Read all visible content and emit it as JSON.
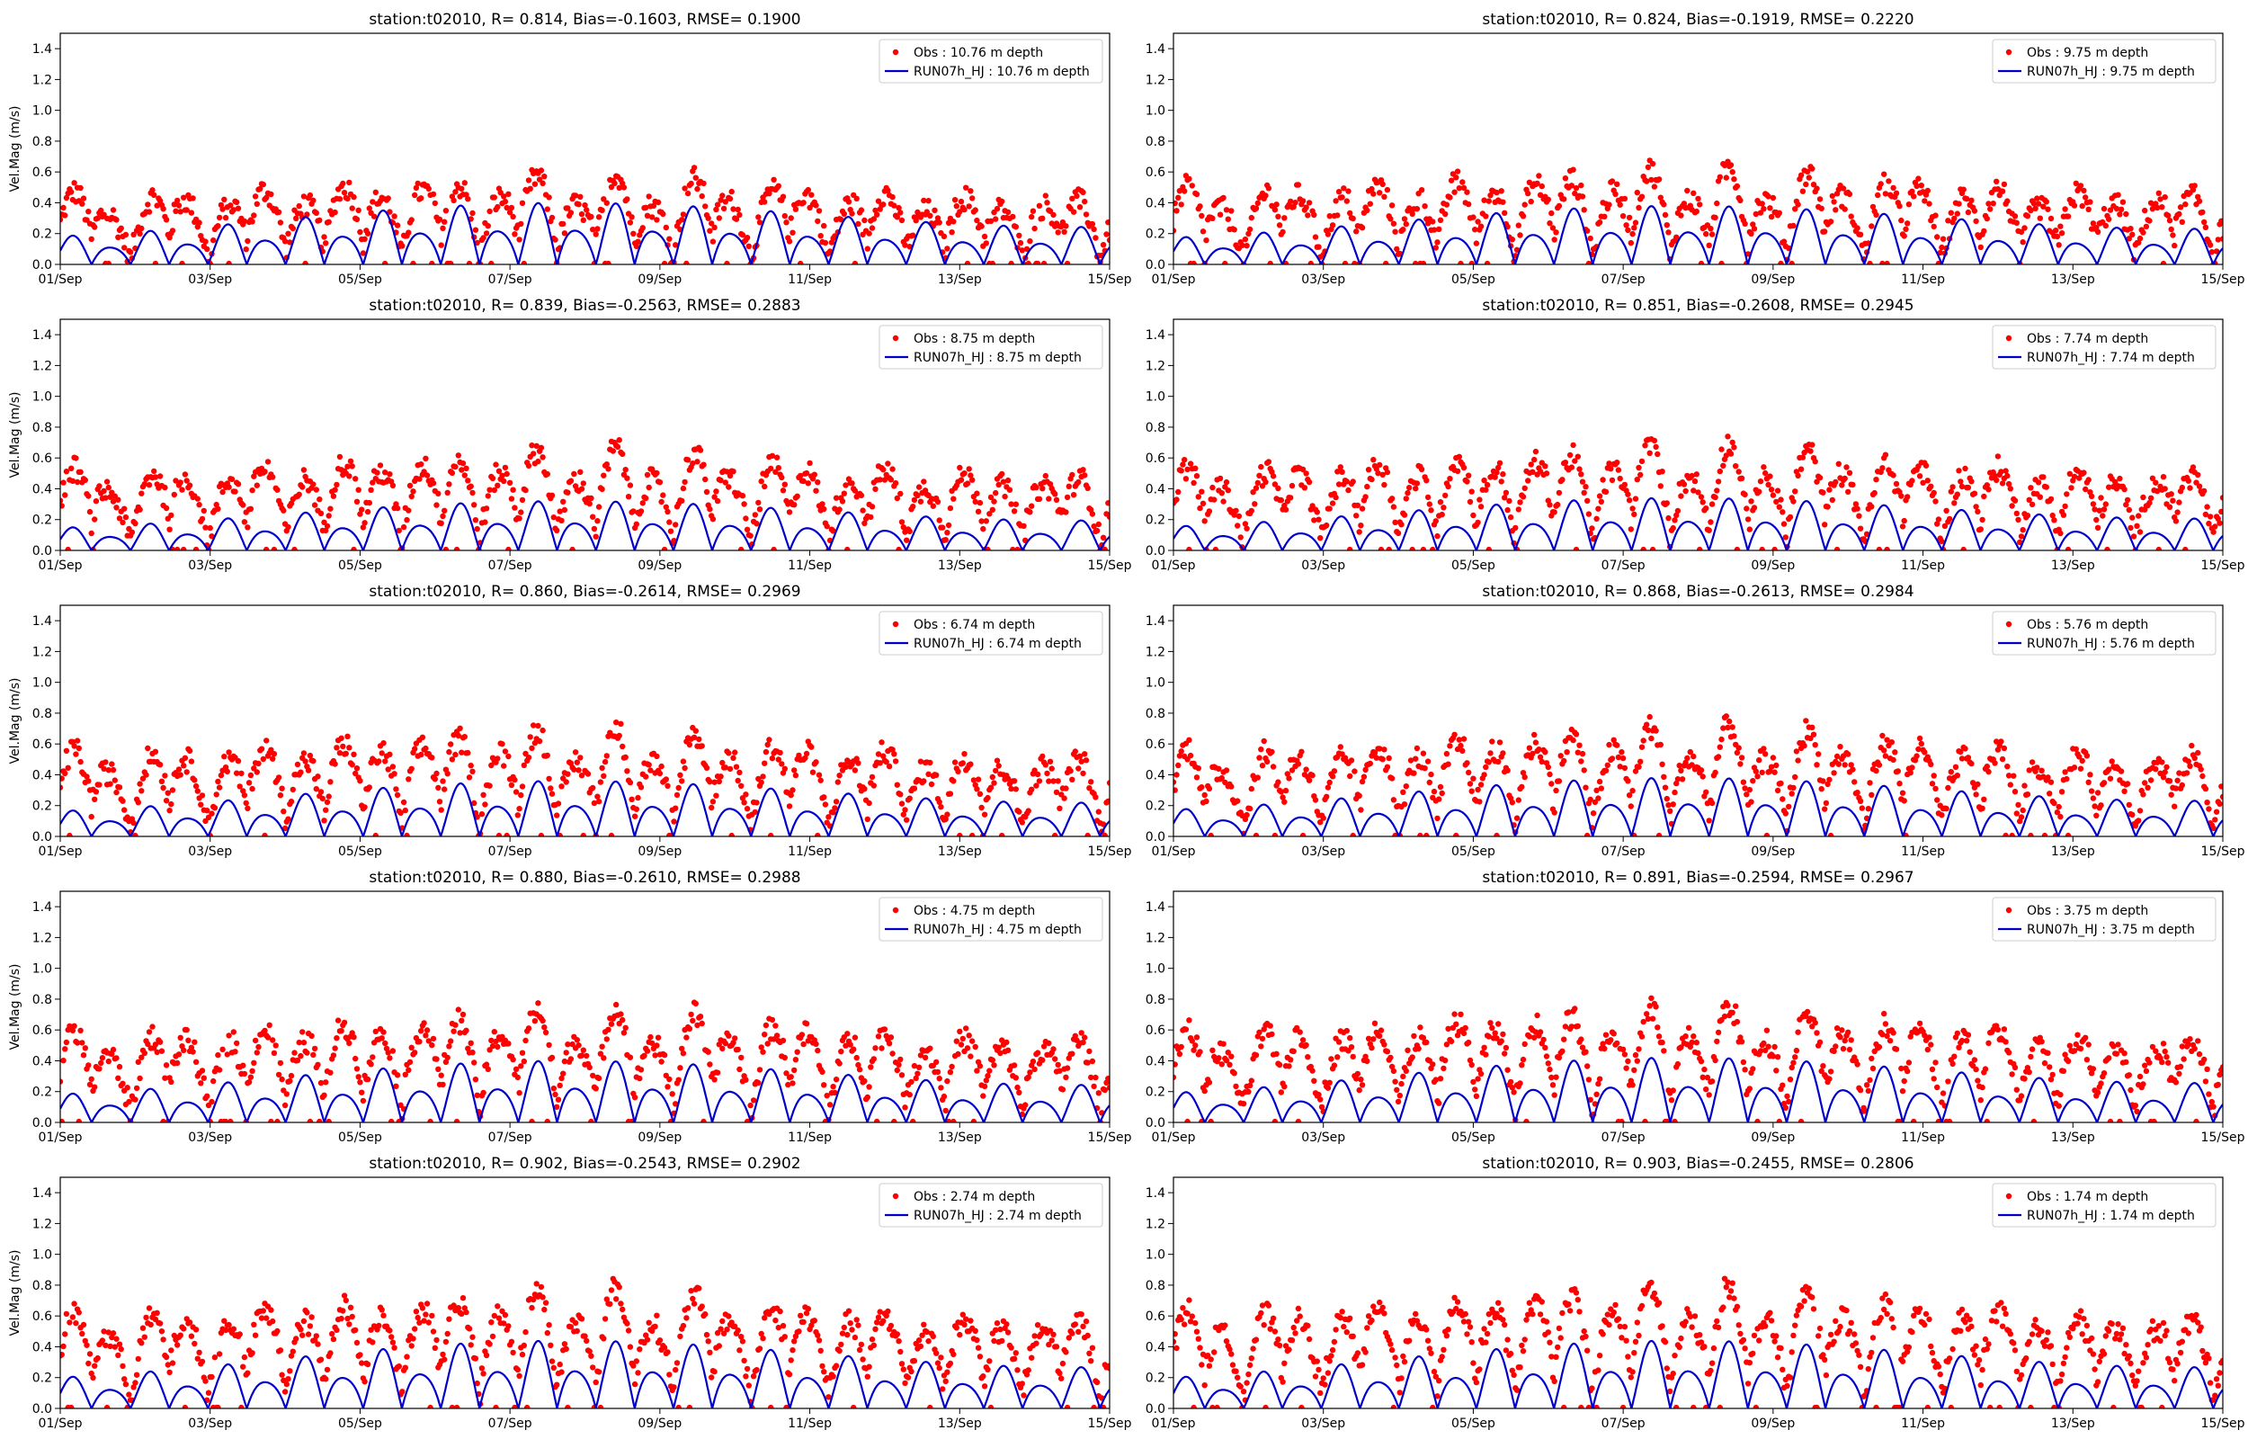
{
  "chart_data": [
    {
      "type": "line",
      "title": "station:t02010, R= 0.814, Bias=-0.1603, RMSE= 0.1900",
      "ylabel": "Vel.Mag (m/s)",
      "ylim": [
        0,
        1.5
      ],
      "yticks": [
        "0.0",
        "0.2",
        "0.4",
        "0.6",
        "0.8",
        "1.0",
        "1.2",
        "1.4"
      ],
      "xticks": [
        "01/Sep",
        "03/Sep",
        "05/Sep",
        "07/Sep",
        "09/Sep",
        "11/Sep",
        "13/Sep",
        "15/Sep"
      ],
      "xlim_days": [
        0,
        14
      ],
      "legend": "top-right",
      "series": [
        {
          "name": "Obs : 10.76 m depth",
          "kind": "scatter",
          "color": "#ff0000",
          "base": 0.3,
          "amp": 0.26
        },
        {
          "name": "RUN07h_HJ : 10.76 m depth",
          "kind": "line",
          "color": "#0000cc",
          "base": 0.2,
          "amp": 0.14
        }
      ]
    },
    {
      "type": "line",
      "title": "station:t02010, R= 0.824, Bias=-0.1919, RMSE= 0.2220",
      "ylabel": "",
      "ylim": [
        0,
        1.5
      ],
      "yticks": [
        "0.0",
        "0.2",
        "0.4",
        "0.6",
        "0.8",
        "1.0",
        "1.2",
        "1.4"
      ],
      "xticks": [
        "01/Sep",
        "03/Sep",
        "05/Sep",
        "07/Sep",
        "09/Sep",
        "11/Sep",
        "13/Sep",
        "15/Sep"
      ],
      "xlim_days": [
        0,
        14
      ],
      "legend": "top-right",
      "series": [
        {
          "name": "Obs : 9.75 m depth",
          "kind": "scatter",
          "color": "#ff0000",
          "base": 0.32,
          "amp": 0.28
        },
        {
          "name": "RUN07h_HJ : 9.75 m depth",
          "kind": "line",
          "color": "#0000cc",
          "base": 0.19,
          "amp": 0.13
        }
      ]
    },
    {
      "type": "line",
      "title": "station:t02010, R= 0.839, Bias=-0.2563, RMSE= 0.2883",
      "ylabel": "Vel.Mag (m/s)",
      "ylim": [
        0,
        1.5
      ],
      "yticks": [
        "0.0",
        "0.2",
        "0.4",
        "0.6",
        "0.8",
        "1.0",
        "1.2",
        "1.4"
      ],
      "xticks": [
        "01/Sep",
        "03/Sep",
        "05/Sep",
        "07/Sep",
        "09/Sep",
        "11/Sep",
        "13/Sep",
        "15/Sep"
      ],
      "xlim_days": [
        0,
        14
      ],
      "legend": "top-right",
      "series": [
        {
          "name": "Obs : 8.75 m depth",
          "kind": "scatter",
          "color": "#ff0000",
          "base": 0.34,
          "amp": 0.3
        },
        {
          "name": "RUN07h_HJ : 8.75 m depth",
          "kind": "line",
          "color": "#0000cc",
          "base": 0.16,
          "amp": 0.1
        }
      ]
    },
    {
      "type": "line",
      "title": "station:t02010, R= 0.851, Bias=-0.2608, RMSE= 0.2945",
      "ylabel": "",
      "ylim": [
        0,
        1.5
      ],
      "yticks": [
        "0.0",
        "0.2",
        "0.4",
        "0.6",
        "0.8",
        "1.0",
        "1.2",
        "1.4"
      ],
      "xticks": [
        "01/Sep",
        "03/Sep",
        "05/Sep",
        "07/Sep",
        "09/Sep",
        "11/Sep",
        "13/Sep",
        "15/Sep"
      ],
      "xlim_days": [
        0,
        14
      ],
      "legend": "top-right",
      "series": [
        {
          "name": "Obs : 7.74 m depth",
          "kind": "scatter",
          "color": "#ff0000",
          "base": 0.35,
          "amp": 0.31
        },
        {
          "name": "RUN07h_HJ : 7.74 m depth",
          "kind": "line",
          "color": "#0000cc",
          "base": 0.17,
          "amp": 0.1
        }
      ]
    },
    {
      "type": "line",
      "title": "station:t02010, R= 0.860, Bias=-0.2614, RMSE= 0.2969",
      "ylabel": "Vel.Mag (m/s)",
      "ylim": [
        0,
        1.5
      ],
      "yticks": [
        "0.0",
        "0.2",
        "0.4",
        "0.6",
        "0.8",
        "1.0",
        "1.2",
        "1.4"
      ],
      "xticks": [
        "01/Sep",
        "03/Sep",
        "05/Sep",
        "07/Sep",
        "09/Sep",
        "11/Sep",
        "13/Sep",
        "15/Sep"
      ],
      "xlim_days": [
        0,
        14
      ],
      "legend": "top-right",
      "series": [
        {
          "name": "Obs : 6.74 m depth",
          "kind": "scatter",
          "color": "#ff0000",
          "base": 0.36,
          "amp": 0.32
        },
        {
          "name": "RUN07h_HJ : 6.74 m depth",
          "kind": "line",
          "color": "#0000cc",
          "base": 0.18,
          "amp": 0.11
        }
      ]
    },
    {
      "type": "line",
      "title": "station:t02010, R= 0.868, Bias=-0.2613, RMSE= 0.2984",
      "ylabel": "",
      "ylim": [
        0,
        1.5
      ],
      "yticks": [
        "0.0",
        "0.2",
        "0.4",
        "0.6",
        "0.8",
        "1.0",
        "1.2",
        "1.4"
      ],
      "xticks": [
        "01/Sep",
        "03/Sep",
        "05/Sep",
        "07/Sep",
        "09/Sep",
        "11/Sep",
        "13/Sep",
        "15/Sep"
      ],
      "xlim_days": [
        0,
        14
      ],
      "legend": "top-right",
      "series": [
        {
          "name": "Obs : 5.76 m depth",
          "kind": "scatter",
          "color": "#ff0000",
          "base": 0.37,
          "amp": 0.33
        },
        {
          "name": "RUN07h_HJ : 5.76 m depth",
          "kind": "line",
          "color": "#0000cc",
          "base": 0.19,
          "amp": 0.11
        }
      ]
    },
    {
      "type": "line",
      "title": "station:t02010, R= 0.880, Bias=-0.2610, RMSE= 0.2988",
      "ylabel": "Vel.Mag (m/s)",
      "ylim": [
        0,
        1.5
      ],
      "yticks": [
        "0.0",
        "0.2",
        "0.4",
        "0.6",
        "0.8",
        "1.0",
        "1.2",
        "1.4"
      ],
      "xticks": [
        "01/Sep",
        "03/Sep",
        "05/Sep",
        "07/Sep",
        "09/Sep",
        "11/Sep",
        "13/Sep",
        "15/Sep"
      ],
      "xlim_days": [
        0,
        14
      ],
      "legend": "top-right",
      "series": [
        {
          "name": "Obs : 4.75 m depth",
          "kind": "scatter",
          "color": "#ff0000",
          "base": 0.38,
          "amp": 0.34
        },
        {
          "name": "RUN07h_HJ : 4.75 m depth",
          "kind": "line",
          "color": "#0000cc",
          "base": 0.2,
          "amp": 0.12
        }
      ]
    },
    {
      "type": "line",
      "title": "station:t02010, R= 0.891, Bias=-0.2594, RMSE= 0.2967",
      "ylabel": "",
      "ylim": [
        0,
        1.5
      ],
      "yticks": [
        "0.0",
        "0.2",
        "0.4",
        "0.6",
        "0.8",
        "1.0",
        "1.2",
        "1.4"
      ],
      "xticks": [
        "01/Sep",
        "03/Sep",
        "05/Sep",
        "07/Sep",
        "09/Sep",
        "11/Sep",
        "13/Sep",
        "15/Sep"
      ],
      "xlim_days": [
        0,
        14
      ],
      "legend": "top-right",
      "series": [
        {
          "name": "Obs : 3.75 m depth",
          "kind": "scatter",
          "color": "#ff0000",
          "base": 0.39,
          "amp": 0.35
        },
        {
          "name": "RUN07h_HJ : 3.75 m depth",
          "kind": "line",
          "color": "#0000cc",
          "base": 0.21,
          "amp": 0.12
        }
      ]
    },
    {
      "type": "line",
      "title": "station:t02010, R= 0.902, Bias=-0.2543, RMSE= 0.2902",
      "ylabel": "Vel.Mag (m/s)",
      "ylim": [
        0,
        1.5
      ],
      "yticks": [
        "0.0",
        "0.2",
        "0.4",
        "0.6",
        "0.8",
        "1.0",
        "1.2",
        "1.4"
      ],
      "xticks": [
        "01/Sep",
        "03/Sep",
        "05/Sep",
        "07/Sep",
        "09/Sep",
        "11/Sep",
        "13/Sep",
        "15/Sep"
      ],
      "xlim_days": [
        0,
        14
      ],
      "legend": "top-right",
      "series": [
        {
          "name": "Obs : 2.74 m depth",
          "kind": "scatter",
          "color": "#ff0000",
          "base": 0.4,
          "amp": 0.36
        },
        {
          "name": "RUN07h_HJ : 2.74 m depth",
          "kind": "line",
          "color": "#0000cc",
          "base": 0.22,
          "amp": 0.13
        }
      ]
    },
    {
      "type": "line",
      "title": "station:t02010, R= 0.903, Bias=-0.2455, RMSE= 0.2806",
      "ylabel": "",
      "ylim": [
        0,
        1.5
      ],
      "yticks": [
        "0.0",
        "0.2",
        "0.4",
        "0.6",
        "0.8",
        "1.0",
        "1.2",
        "1.4"
      ],
      "xticks": [
        "01/Sep",
        "03/Sep",
        "05/Sep",
        "07/Sep",
        "09/Sep",
        "11/Sep",
        "13/Sep",
        "15/Sep"
      ],
      "xlim_days": [
        0,
        14
      ],
      "legend": "top-right",
      "series": [
        {
          "name": "Obs : 1.74 m depth",
          "kind": "scatter",
          "color": "#ff0000",
          "base": 0.41,
          "amp": 0.37
        },
        {
          "name": "RUN07h_HJ : 1.74 m depth",
          "kind": "line",
          "color": "#0000cc",
          "base": 0.22,
          "amp": 0.13
        }
      ]
    }
  ]
}
